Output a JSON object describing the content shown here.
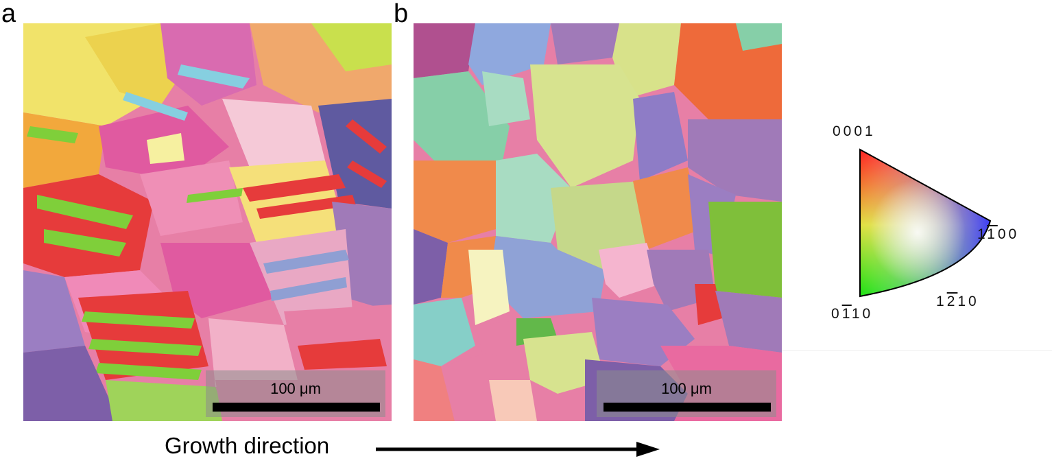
{
  "panels": {
    "a": {
      "letter": "a",
      "scale_label": "100 μm"
    },
    "b": {
      "letter": "b",
      "scale_label": "100 μm"
    }
  },
  "ipf_legend": {
    "corner_top": "0001",
    "corner_right": {
      "digit1": "1",
      "barred": "1",
      "rest": "00"
    },
    "arc_mid": {
      "digit1": "1",
      "barred": "2",
      "rest": "10"
    },
    "corner_bottom": {
      "digit1": "0",
      "barred": "1",
      "rest": "10"
    },
    "colors": {
      "top": "#ff2020",
      "right": "#2a2aff",
      "bottom": "#10e010"
    }
  },
  "growth": {
    "label": "Growth direction"
  },
  "colors": {
    "pink": "#e77fa6",
    "red": "#e63b3b",
    "green": "#7fcf3a",
    "yellow": "#f1e36a",
    "orange": "#f08a4b",
    "purple": "#a07ab8",
    "blue": "#8f9fd3",
    "teal": "#86cfa8",
    "violet": "#5f5aa0",
    "magenta": "#d94b9b"
  }
}
